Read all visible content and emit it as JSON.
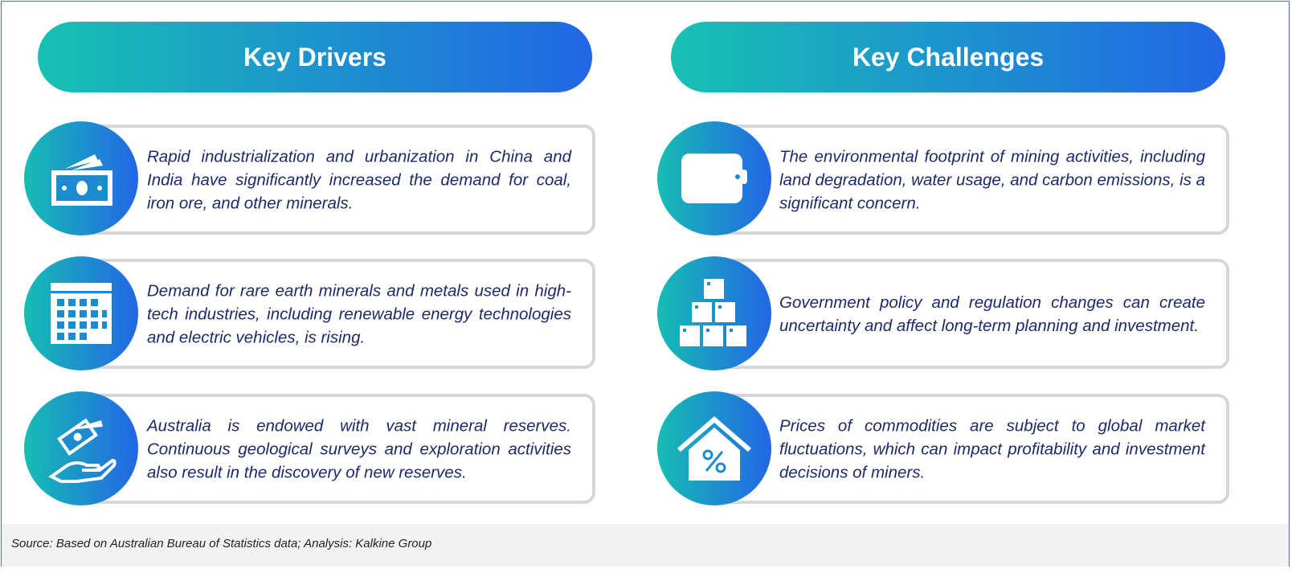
{
  "drivers": {
    "title": "Key Drivers",
    "items": [
      {
        "icon": "money-icon",
        "text": "Rapid industrialization and urbanization in China and India have significantly increased the demand for coal, iron ore, and other minerals."
      },
      {
        "icon": "calendar-icon",
        "text": "Demand for rare earth minerals and metals used in high-tech industries, including renewable energy technologies and electric vehicles, is rising."
      },
      {
        "icon": "hand-money-icon",
        "text": "Australia is endowed with vast mineral reserves. Continuous geological surveys and exploration activities also result in the discovery of new reserves."
      }
    ]
  },
  "challenges": {
    "title": "Key Challenges",
    "items": [
      {
        "icon": "wallet-icon",
        "text": "The environmental footprint of mining activities, including land degradation, water usage, and carbon emissions, is a significant concern."
      },
      {
        "icon": "boxes-icon",
        "text": "Government policy and regulation changes can create uncertainty and affect long-term planning and investment."
      },
      {
        "icon": "house-percent-icon",
        "text": "Prices of commodities are subject to global market fluctuations, which can impact profitability and investment decisions of miners."
      }
    ]
  },
  "footer": {
    "source": "Source: Based on Australian Bureau of Statistics data; Analysis: Kalkine Group"
  },
  "colors": {
    "gradient_start": "#16bdb2",
    "gradient_end": "#2366e6",
    "text": "#1d2a6a"
  }
}
